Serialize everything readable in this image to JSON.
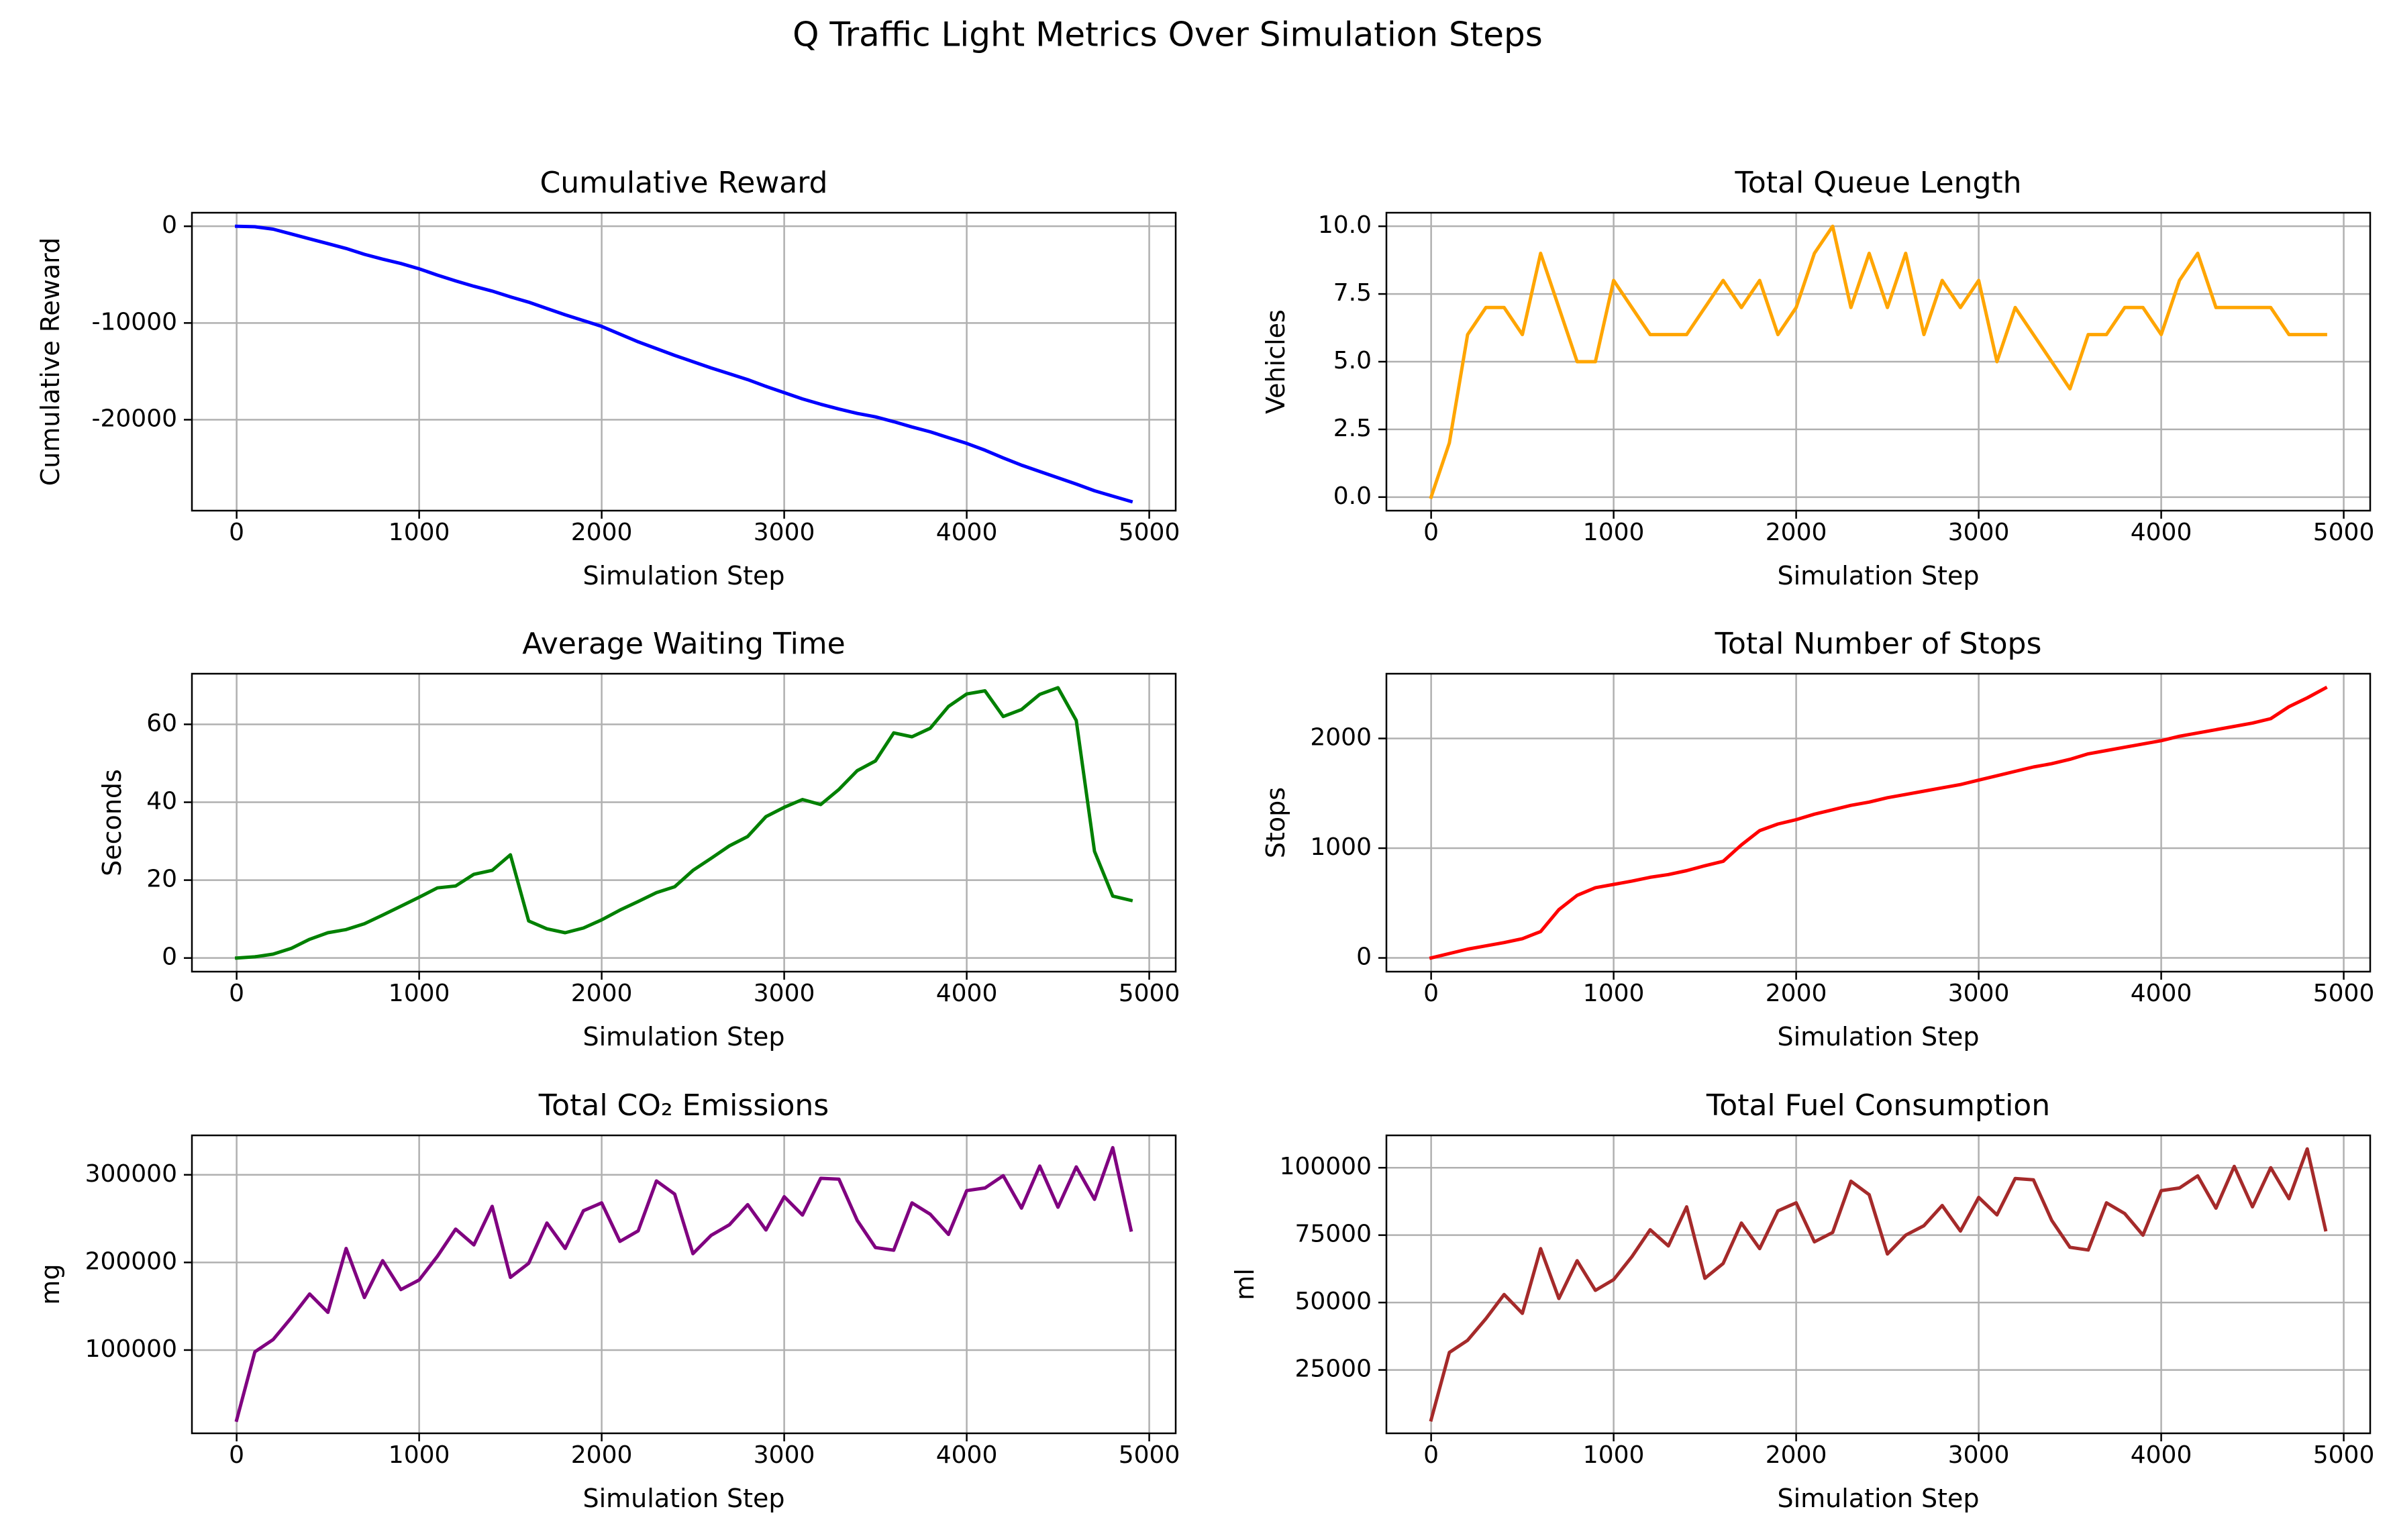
{
  "figure_title": "Q Traffic Light Metrics Over Simulation Steps",
  "colors": {
    "reward": "#0000ff",
    "queue": "#ffa500",
    "waiting": "#008000",
    "stops": "#ff0000",
    "co2": "#800080",
    "fuel": "#a52a2a",
    "grid": "#b0b0b0",
    "axes": "#000000"
  },
  "chart_data": [
    {
      "type": "line",
      "title": "Cumulative Reward",
      "xlabel": "Simulation Step",
      "ylabel": "Cumulative Reward",
      "grid": true,
      "xlim": [
        -245,
        5145
      ],
      "ylim": [
        -29400,
        1400
      ],
      "xticks": [
        0,
        1000,
        2000,
        3000,
        4000,
        5000
      ],
      "yticks": [
        0,
        -10000,
        -20000
      ],
      "color_key": "reward",
      "series": [
        {
          "x": [
            0,
            100,
            200,
            300,
            400,
            500,
            600,
            700,
            800,
            900,
            1000,
            1100,
            1200,
            1300,
            1400,
            1500,
            1600,
            1700,
            1800,
            1900,
            2000,
            2100,
            2200,
            2300,
            2400,
            2500,
            2600,
            2700,
            2800,
            2900,
            3000,
            3100,
            3200,
            3300,
            3400,
            3500,
            3600,
            3700,
            3800,
            3900,
            4000,
            4100,
            4200,
            4300,
            4400,
            4500,
            4600,
            4700,
            4800,
            4900
          ],
          "values": [
            0,
            -50,
            -300,
            -800,
            -1300,
            -1800,
            -2300,
            -2900,
            -3400,
            -3850,
            -4400,
            -5050,
            -5650,
            -6200,
            -6700,
            -7300,
            -7850,
            -8500,
            -9150,
            -9750,
            -10350,
            -11150,
            -11950,
            -12650,
            -13350,
            -14000,
            -14650,
            -15250,
            -15850,
            -16550,
            -17200,
            -17850,
            -18400,
            -18900,
            -19350,
            -19700,
            -20200,
            -20750,
            -21250,
            -21850,
            -22450,
            -23150,
            -23950,
            -24700,
            -25350,
            -26000,
            -26650,
            -27350,
            -27900,
            -28450
          ]
        }
      ]
    },
    {
      "type": "line",
      "title": "Total Queue Length",
      "xlabel": "Simulation Step",
      "ylabel": "Vehicles",
      "grid": true,
      "xlim": [
        -245,
        5145
      ],
      "ylim": [
        -0.5,
        10.5
      ],
      "xticks": [
        0,
        1000,
        2000,
        3000,
        4000,
        5000
      ],
      "yticks": [
        "0.0",
        "2.5",
        "5.0",
        "7.5",
        "10.0"
      ],
      "color_key": "queue",
      "series": [
        {
          "x": [
            0,
            100,
            200,
            300,
            400,
            500,
            600,
            700,
            800,
            900,
            1000,
            1100,
            1200,
            1300,
            1400,
            1500,
            1600,
            1700,
            1800,
            1900,
            2000,
            2100,
            2200,
            2300,
            2400,
            2500,
            2600,
            2700,
            2800,
            2900,
            3000,
            3100,
            3200,
            3300,
            3400,
            3500,
            3600,
            3700,
            3800,
            3900,
            4000,
            4100,
            4200,
            4300,
            4400,
            4500,
            4600,
            4700,
            4800,
            4900
          ],
          "values": [
            0,
            2,
            6,
            7,
            7,
            6,
            9,
            7,
            5,
            5,
            8,
            7,
            6,
            6,
            6,
            7,
            8,
            7,
            8,
            6,
            7,
            9,
            10,
            7,
            9,
            7,
            9,
            6,
            8,
            7,
            8,
            5,
            7,
            6,
            5,
            4,
            6,
            6,
            7,
            7,
            6,
            8,
            9,
            7,
            7,
            7,
            7,
            6,
            6,
            6
          ]
        }
      ]
    },
    {
      "type": "line",
      "title": "Average Waiting Time",
      "xlabel": "Simulation Step",
      "ylabel": "Seconds",
      "grid": true,
      "xlim": [
        -245,
        5145
      ],
      "ylim": [
        -3.5,
        73
      ],
      "xticks": [
        0,
        1000,
        2000,
        3000,
        4000,
        5000
      ],
      "yticks": [
        0,
        20,
        40,
        60
      ],
      "color_key": "waiting",
      "series": [
        {
          "x": [
            0,
            100,
            200,
            300,
            400,
            500,
            600,
            700,
            800,
            900,
            1000,
            1100,
            1200,
            1300,
            1400,
            1500,
            1600,
            1700,
            1800,
            1900,
            2000,
            2100,
            2200,
            2300,
            2400,
            2500,
            2600,
            2700,
            2800,
            2900,
            3000,
            3100,
            3200,
            3300,
            3400,
            3500,
            3600,
            3700,
            3800,
            3900,
            4000,
            4100,
            4200,
            4300,
            4400,
            4500,
            4600,
            4700,
            4800,
            4900
          ],
          "values": [
            0,
            0.3,
            1,
            2.5,
            4.8,
            6.5,
            7.3,
            8.8,
            11,
            13.3,
            15.6,
            18,
            18.5,
            21.5,
            22.5,
            26.5,
            9.5,
            7.5,
            6.5,
            7.7,
            9.8,
            12.3,
            14.5,
            16.8,
            18.3,
            22.5,
            25.6,
            28.8,
            31.2,
            36.3,
            38.7,
            40.7,
            39.4,
            43.3,
            48.1,
            50.6,
            57.8,
            56.8,
            59,
            64.6,
            67.8,
            68.6,
            62,
            63.8,
            67.7,
            69.4,
            61,
            27.4,
            15.9,
            14.8
          ]
        }
      ]
    },
    {
      "type": "line",
      "title": "Total Number of Stops",
      "xlabel": "Simulation Step",
      "ylabel": "Stops",
      "grid": true,
      "xlim": [
        -245,
        5145
      ],
      "ylim": [
        -125,
        2590
      ],
      "xticks": [
        0,
        1000,
        2000,
        3000,
        4000,
        5000
      ],
      "yticks": [
        0,
        1000,
        2000
      ],
      "color_key": "stops",
      "series": [
        {
          "x": [
            0,
            100,
            200,
            300,
            400,
            500,
            600,
            700,
            800,
            900,
            1000,
            1100,
            1200,
            1300,
            1400,
            1500,
            1600,
            1700,
            1800,
            1900,
            2000,
            2100,
            2200,
            2300,
            2400,
            2500,
            2600,
            2700,
            2800,
            2900,
            3000,
            3100,
            3200,
            3300,
            3400,
            3500,
            3600,
            3700,
            3800,
            3900,
            4000,
            4100,
            4200,
            4300,
            4400,
            4500,
            4600,
            4700,
            4800,
            4900
          ],
          "values": [
            0,
            40,
            80,
            110,
            140,
            175,
            240,
            440,
            570,
            640,
            670,
            700,
            735,
            760,
            795,
            840,
            880,
            1030,
            1160,
            1220,
            1260,
            1310,
            1350,
            1390,
            1420,
            1460,
            1490,
            1520,
            1550,
            1580,
            1620,
            1660,
            1700,
            1740,
            1770,
            1810,
            1860,
            1890,
            1920,
            1950,
            1980,
            2020,
            2050,
            2080,
            2110,
            2140,
            2180,
            2290,
            2370,
            2460
          ]
        }
      ]
    },
    {
      "type": "line",
      "title": "Total CO₂ Emissions",
      "xlabel": "Simulation Step",
      "ylabel": "mg",
      "grid": true,
      "xlim": [
        -245,
        5145
      ],
      "ylim": [
        5000,
        345000
      ],
      "xticks": [
        0,
        1000,
        2000,
        3000,
        4000,
        5000
      ],
      "yticks": [
        100000,
        200000,
        300000
      ],
      "color_key": "co2",
      "series": [
        {
          "x": [
            0,
            100,
            200,
            300,
            400,
            500,
            600,
            700,
            800,
            900,
            1000,
            1100,
            1200,
            1300,
            1400,
            1500,
            1600,
            1700,
            1800,
            1900,
            2000,
            2100,
            2200,
            2300,
            2400,
            2500,
            2600,
            2700,
            2800,
            2900,
            3000,
            3100,
            3200,
            3300,
            3400,
            3500,
            3600,
            3700,
            3800,
            3900,
            4000,
            4100,
            4200,
            4300,
            4400,
            4500,
            4600,
            4700,
            4800,
            4900
          ],
          "values": [
            20000,
            98000,
            112000,
            137000,
            164000,
            143000,
            216000,
            160000,
            202000,
            169000,
            180000,
            207000,
            238000,
            220000,
            264000,
            183000,
            199000,
            245000,
            216000,
            259000,
            268000,
            224000,
            236000,
            293000,
            278000,
            210000,
            231000,
            243000,
            266000,
            237000,
            275000,
            254000,
            296000,
            295000,
            248000,
            217000,
            214000,
            268000,
            255000,
            232000,
            282000,
            285000,
            299000,
            262000,
            310000,
            263000,
            309000,
            272000,
            331000,
            237000
          ]
        }
      ]
    },
    {
      "type": "line",
      "title": "Total Fuel Consumption",
      "xlabel": "Simulation Step",
      "ylabel": "ml",
      "grid": true,
      "xlim": [
        -245,
        5145
      ],
      "ylim": [
        1500,
        112000
      ],
      "xticks": [
        0,
        1000,
        2000,
        3000,
        4000,
        5000
      ],
      "yticks": [
        25000,
        50000,
        75000,
        100000
      ],
      "color_key": "fuel",
      "series": [
        {
          "x": [
            0,
            100,
            200,
            300,
            400,
            500,
            600,
            700,
            800,
            900,
            1000,
            1100,
            1200,
            1300,
            1400,
            1500,
            1600,
            1700,
            1800,
            1900,
            2000,
            2100,
            2200,
            2300,
            2400,
            2500,
            2600,
            2700,
            2800,
            2900,
            3000,
            3100,
            3200,
            3300,
            3400,
            3500,
            3600,
            3700,
            3800,
            3900,
            4000,
            4100,
            4200,
            4300,
            4400,
            4500,
            4600,
            4700,
            4800,
            4900
          ],
          "values": [
            6500,
            31500,
            36000,
            44000,
            53000,
            46000,
            70000,
            51500,
            65500,
            54500,
            58500,
            67000,
            77000,
            71000,
            85500,
            59000,
            64500,
            79500,
            70000,
            84000,
            87000,
            72500,
            76000,
            95000,
            90000,
            68000,
            75000,
            78500,
            86000,
            76500,
            89000,
            82500,
            96000,
            95500,
            80500,
            70500,
            69500,
            87000,
            83000,
            75000,
            91500,
            92500,
            97000,
            85000,
            100500,
            85500,
            100000,
            88500,
            107000,
            77000
          ]
        }
      ]
    }
  ]
}
